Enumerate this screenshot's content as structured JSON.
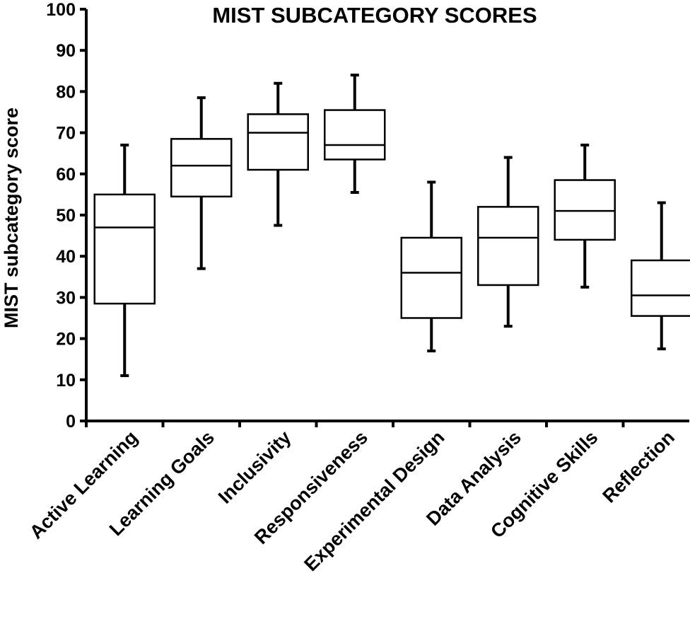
{
  "chart_data": {
    "type": "box",
    "title": "MIST SUBCATEGORY SCORES",
    "ylabel": "MIST subcategory  score",
    "xlabel": "",
    "ylim": [
      0,
      100
    ],
    "yticks": [
      0,
      10,
      20,
      30,
      40,
      50,
      60,
      70,
      80,
      90,
      100
    ],
    "grid": false,
    "categories": [
      "Active Learning",
      "Learning Goals",
      "Inclusivity",
      "Responsiveness",
      "Experimental Design",
      "Data Analysis",
      "Cognitive Skills",
      "Reflection"
    ],
    "boxes": [
      {
        "category": "Active Learning",
        "min": 11,
        "q1": 28.5,
        "median": 47,
        "q3": 55,
        "max": 67
      },
      {
        "category": "Learning Goals",
        "min": 37,
        "q1": 54.5,
        "median": 62,
        "q3": 68.5,
        "max": 78.5
      },
      {
        "category": "Inclusivity",
        "min": 47.5,
        "q1": 61,
        "median": 70,
        "q3": 74.5,
        "max": 82
      },
      {
        "category": "Responsiveness",
        "min": 55.5,
        "q1": 63.5,
        "median": 67,
        "q3": 75.5,
        "max": 84
      },
      {
        "category": "Experimental Design",
        "min": 17,
        "q1": 25,
        "median": 36,
        "q3": 44.5,
        "max": 58
      },
      {
        "category": "Data Analysis",
        "min": 23,
        "q1": 33,
        "median": 44.5,
        "q3": 52,
        "max": 64
      },
      {
        "category": "Cognitive Skills",
        "min": 32.5,
        "q1": 44,
        "median": 51,
        "q3": 58.5,
        "max": 67
      },
      {
        "category": "Reflection",
        "min": 17.5,
        "q1": 25.5,
        "median": 30.5,
        "q3": 39,
        "max": 53
      }
    ]
  }
}
